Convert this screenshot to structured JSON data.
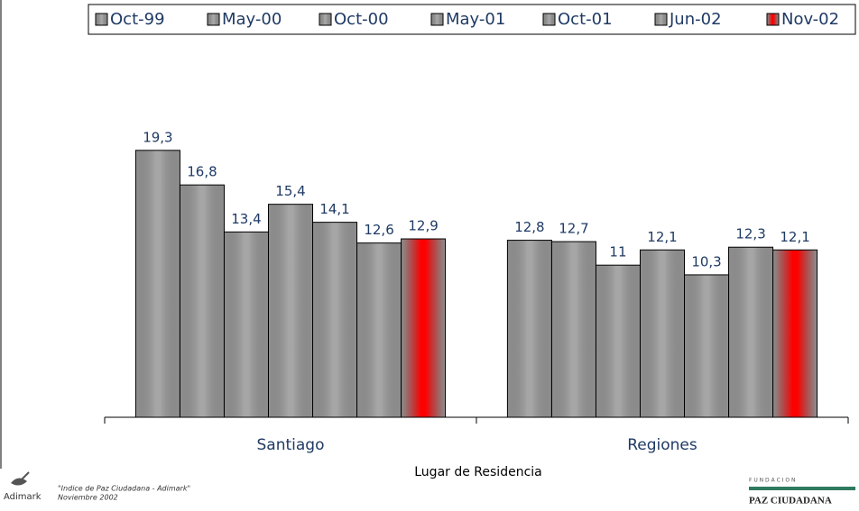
{
  "chart_data": {
    "type": "bar",
    "x_label": "Lugar de Residencia",
    "categories": [
      "Santiago",
      "Regiones"
    ],
    "series": [
      {
        "name": "Oct-99",
        "color": "#a6a6a6",
        "values": [
          19.3,
          12.8
        ],
        "value_labels": [
          "19,3",
          "12,8"
        ]
      },
      {
        "name": "May-00",
        "color": "#a6a6a6",
        "values": [
          16.8,
          12.7
        ],
        "value_labels": [
          "16,8",
          "12,7"
        ]
      },
      {
        "name": "Oct-00",
        "color": "#a6a6a6",
        "values": [
          13.4,
          11
        ],
        "value_labels": [
          "13,4",
          "11"
        ]
      },
      {
        "name": "May-01",
        "color": "#a6a6a6",
        "values": [
          15.4,
          12.1
        ],
        "value_labels": [
          "15,4",
          "12,1"
        ]
      },
      {
        "name": "Oct-01",
        "color": "#a6a6a6",
        "values": [
          14.1,
          10.3
        ],
        "value_labels": [
          "14,1",
          "10,3"
        ]
      },
      {
        "name": "Jun-02",
        "color": "#a6a6a6",
        "values": [
          12.6,
          12.3
        ],
        "value_labels": [
          "12,6",
          "12,3"
        ]
      },
      {
        "name": "Nov-02",
        "color": "#ff0000",
        "values": [
          12.9,
          12.1
        ],
        "value_labels": [
          "12,9",
          "12,1"
        ]
      }
    ],
    "ylim": [
      0,
      26
    ],
    "legend": "top"
  },
  "footer": {
    "brand": "Adimark",
    "source": "\"Indice de Paz Ciudadana - Adimark\"",
    "date": "Noviembre 2002",
    "foundation_top": "F U N D A C I O N",
    "foundation": "PAZ CIUDADANA"
  }
}
